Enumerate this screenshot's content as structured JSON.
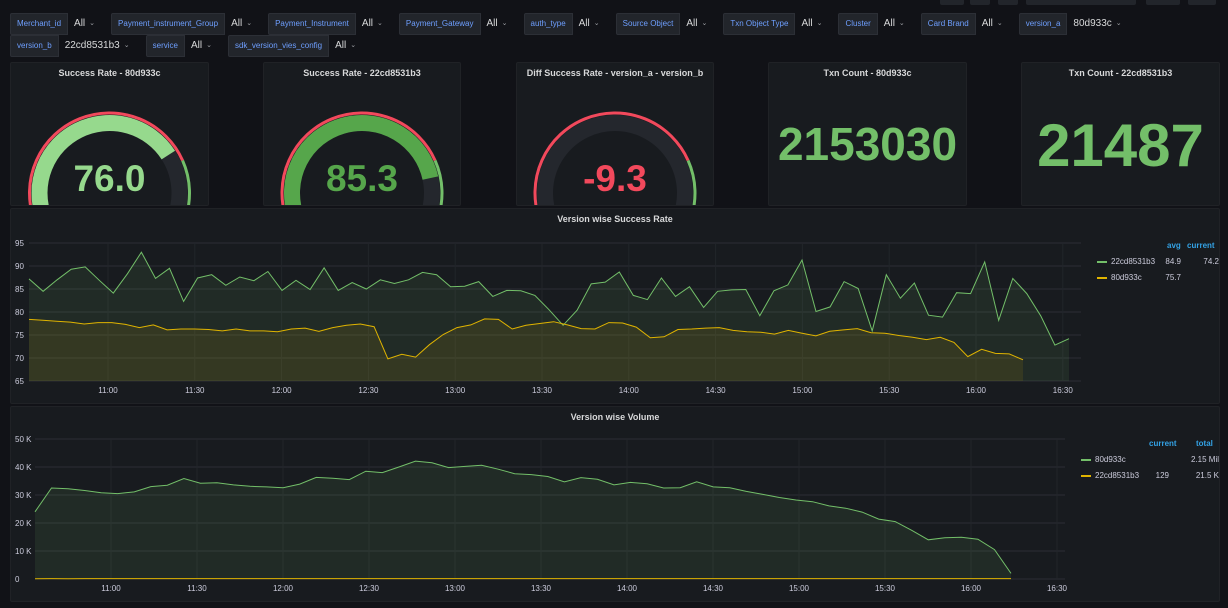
{
  "variables": {
    "row1": [
      {
        "label": "Merchant_id",
        "value": "All"
      },
      {
        "label": "Payment_instrument_Group",
        "value": "All"
      },
      {
        "label": "Payment_Instrument",
        "value": "All"
      },
      {
        "label": "Payment_Gateway",
        "value": "All"
      },
      {
        "label": "auth_type",
        "value": "All"
      },
      {
        "label": "Source Object",
        "value": "All"
      },
      {
        "label": "Txn Object Type",
        "value": "All"
      },
      {
        "label": "Cluster",
        "value": "All"
      },
      {
        "label": "Card Brand",
        "value": "All"
      },
      {
        "label": "version_a",
        "value": "80d933c"
      }
    ],
    "row2": [
      {
        "label": "version_b",
        "value": "22cd8531b3"
      },
      {
        "label": "service",
        "value": "All"
      },
      {
        "label": "sdk_version_vies_config",
        "value": "All"
      }
    ]
  },
  "stats": {
    "gauge_a": {
      "title": "Success Rate - 80d933c",
      "value": "76.0",
      "fraction": 0.76,
      "color": "#96d98d"
    },
    "gauge_b": {
      "title": "Success Rate - 22cd8531b3",
      "value": "85.3",
      "fraction": 0.853,
      "color": "#56a64b"
    },
    "gauge_diff": {
      "title": "Diff Success Rate - version_a - version_b",
      "value": "-9.3",
      "fraction": 0.0,
      "color": "#f2495c"
    },
    "txn_a": {
      "title": "Txn Count - 80d933c",
      "value": "2153030"
    },
    "txn_b": {
      "title": "Txn Count - 22cd8531b3",
      "value": "21487"
    }
  },
  "colors": {
    "green": "#73bf69",
    "yellow": "#e0b400",
    "red": "#f2495c",
    "accent_blue": "#33a2e5"
  },
  "chart_data": [
    {
      "type": "line",
      "title": "Version wise Success Rate",
      "ylim": [
        65,
        95
      ],
      "yticks": [
        "95",
        "90",
        "85",
        "80",
        "75",
        "70",
        "65"
      ],
      "x_range": [
        "10:35",
        "16:32"
      ],
      "xticks": [
        "11:00",
        "11:30",
        "12:00",
        "12:30",
        "13:00",
        "13:30",
        "14:00",
        "14:30",
        "15:00",
        "15:30",
        "16:00",
        "16:30"
      ],
      "legend_headers": [
        "avg",
        "current"
      ],
      "series": [
        {
          "name": "22cd8531b3",
          "color": "#73bf69",
          "avg": "84.9",
          "current": "74.2",
          "values": [
            87.2,
            84.5,
            87.0,
            89.3,
            89.8,
            86.9,
            84.1,
            88.3,
            93.0,
            87.3,
            89.5,
            82.3,
            87.4,
            88.1,
            85.8,
            87.6,
            86.8,
            88.8,
            84.7,
            86.9,
            84.9,
            89.6,
            84.7,
            86.4,
            85.0,
            87.0,
            86.2,
            87.0,
            88.6,
            88.1,
            85.5,
            85.6,
            86.6,
            83.4,
            84.7,
            84.6,
            83.6,
            80.5,
            77.1,
            80.4,
            86.1,
            86.5,
            88.7,
            83.6,
            82.7,
            87.4,
            83.4,
            85.5,
            81.0,
            84.5,
            84.8,
            84.9,
            79.2,
            84.6,
            85.9,
            91.3,
            80.1,
            81.1,
            86.6,
            85.1,
            75.9,
            88.1,
            83.0,
            86.3,
            79.3,
            78.9,
            84.2,
            84.0,
            90.9,
            78.2,
            87.3,
            84.0,
            79.1,
            72.8,
            74.2
          ]
        },
        {
          "name": "80d933c",
          "color": "#e0b400",
          "avg": "75.7",
          "current": "",
          "values": [
            78.4,
            78.2,
            78.0,
            77.8,
            77.4,
            77.7,
            77.7,
            77.3,
            76.6,
            77.2,
            76.1,
            76.3,
            76.3,
            76.2,
            75.9,
            76.3,
            75.9,
            75.9,
            75.7,
            76.3,
            76.5,
            75.8,
            76.6,
            77.1,
            77.4,
            76.8,
            69.8,
            70.8,
            70.2,
            72.9,
            75.1,
            76.6,
            77.2,
            78.5,
            78.4,
            76.3,
            77.1,
            77.5,
            77.9,
            77.2,
            76.4,
            76.3,
            77.7,
            77.6,
            76.7,
            74.4,
            74.6,
            76.2,
            76.3,
            76.5,
            76.6,
            76.0,
            75.7,
            75.6,
            75.2,
            76.0,
            75.4,
            74.8,
            75.8,
            76.1,
            76.4,
            75.5,
            75.4,
            74.9,
            74.5,
            74.0,
            74.5,
            73.4,
            70.3,
            71.9,
            71.0,
            70.9,
            69.6
          ]
        }
      ]
    },
    {
      "type": "line",
      "title": "Version wise Volume",
      "ylim": [
        0,
        50000
      ],
      "yticks": [
        "50 K",
        "40 K",
        "30 K",
        "20 K",
        "10 K",
        "0"
      ],
      "x_range": [
        "10:35",
        "16:35"
      ],
      "xticks": [
        "11:00",
        "11:30",
        "12:00",
        "12:30",
        "13:00",
        "13:30",
        "14:00",
        "14:30",
        "15:00",
        "15:30",
        "16:00",
        "16:30"
      ],
      "legend_headers": [
        "current",
        "total"
      ],
      "series": [
        {
          "name": "80d933c",
          "color": "#73bf69",
          "current": "",
          "total": "2.15 Mil",
          "values": [
            24000,
            32500,
            32200,
            31600,
            30800,
            30500,
            31100,
            33000,
            33500,
            35900,
            34200,
            34400,
            33600,
            33100,
            32900,
            32600,
            33900,
            36300,
            36000,
            35500,
            38500,
            38000,
            40000,
            42100,
            41500,
            39800,
            40200,
            40600,
            39200,
            37600,
            37300,
            36600,
            34700,
            36200,
            35600,
            33600,
            34500,
            34000,
            32500,
            32600,
            34700,
            32900,
            32600,
            31300,
            30200,
            29100,
            28200,
            27600,
            26100,
            25300,
            23900,
            21400,
            20500,
            17400,
            14000,
            14700,
            14900,
            14200,
            10500,
            2000
          ]
        },
        {
          "name": "22cd8531b3",
          "color": "#e0b400",
          "current": "129",
          "total": "21.5 K",
          "values": [
            120,
            130,
            125,
            135,
            128,
            132,
            126,
            129,
            131,
            127,
            130,
            128,
            129,
            133,
            127,
            129,
            128,
            130,
            129,
            131,
            126,
            128,
            130,
            129,
            132,
            128,
            127,
            129,
            130,
            128,
            129,
            131,
            128,
            126,
            130,
            129,
            128,
            127,
            129,
            130,
            131,
            128,
            129,
            127,
            128,
            130,
            129,
            128,
            126,
            129,
            130,
            128,
            127,
            129,
            131,
            128,
            130,
            129,
            128,
            129
          ]
        }
      ]
    }
  ]
}
